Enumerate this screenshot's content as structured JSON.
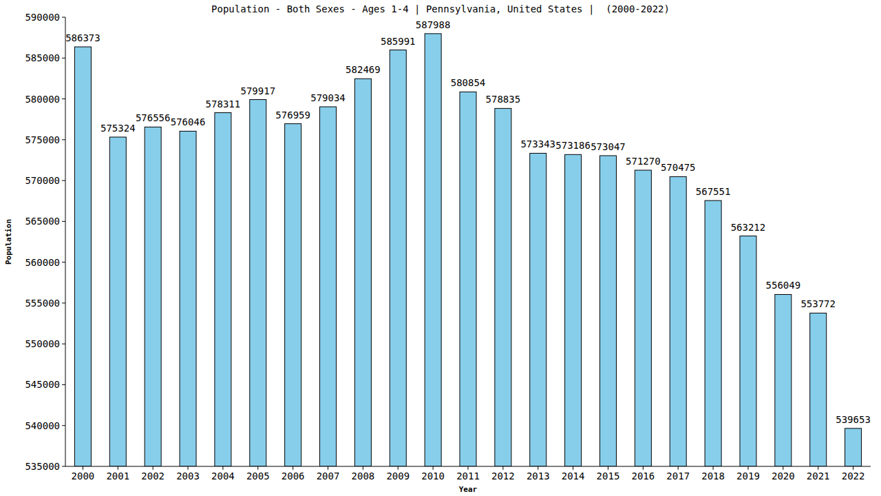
{
  "chart_data": {
    "type": "bar",
    "title": "Population - Both Sexes - Ages 1-4 | Pennsylvania, United States |  (2000-2022)",
    "x_label": "Year",
    "y_label": "Population",
    "categories": [
      "2000",
      "2001",
      "2002",
      "2003",
      "2004",
      "2005",
      "2006",
      "2007",
      "2008",
      "2009",
      "2010",
      "2011",
      "2012",
      "2013",
      "2014",
      "2015",
      "2016",
      "2017",
      "2018",
      "2019",
      "2020",
      "2021",
      "2022"
    ],
    "values": [
      586373,
      575324,
      576556,
      576046,
      578311,
      579917,
      576959,
      579034,
      582469,
      585991,
      587988,
      580854,
      578835,
      573343,
      573186,
      573047,
      571270,
      570475,
      567551,
      563212,
      556049,
      553772,
      539653
    ],
    "color": "#87ceeb",
    "ylim": [
      535000,
      590000
    ],
    "yticks": [
      535000,
      540000,
      545000,
      550000,
      555000,
      560000,
      565000,
      570000,
      575000,
      580000,
      585000,
      590000
    ],
    "grid": false,
    "data_labels": true
  }
}
